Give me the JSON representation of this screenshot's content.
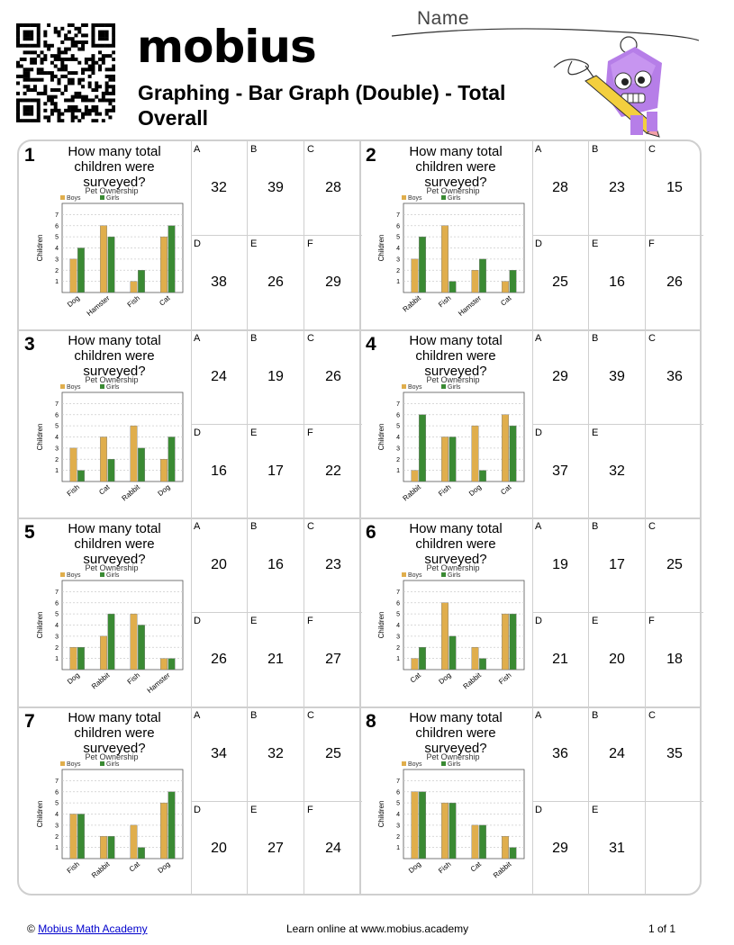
{
  "header": {
    "logo": "mobius",
    "title": "Graphing - Bar Graph (Double) - Total Overall",
    "name_label": "Name"
  },
  "question": "How many total children were surveyed?",
  "chart_common": {
    "title": "Pet Ownership",
    "ylabel": "Children",
    "legend": [
      "Boys",
      "Girls"
    ],
    "yticks": [
      1,
      2,
      3,
      4,
      5,
      6,
      7
    ],
    "colors": {
      "boys": "#e0ae4c",
      "girls": "#3a8a33"
    }
  },
  "problems": [
    {
      "number": "1",
      "answers": [
        {
          "letter": "A",
          "value": "32"
        },
        {
          "letter": "B",
          "value": "39"
        },
        {
          "letter": "C",
          "value": "28"
        },
        {
          "letter": "D",
          "value": "38"
        },
        {
          "letter": "E",
          "value": "26"
        },
        {
          "letter": "F",
          "value": "29"
        }
      ]
    },
    {
      "number": "2",
      "answers": [
        {
          "letter": "A",
          "value": "28"
        },
        {
          "letter": "B",
          "value": "23"
        },
        {
          "letter": "C",
          "value": "15"
        },
        {
          "letter": "D",
          "value": "25"
        },
        {
          "letter": "E",
          "value": "16"
        },
        {
          "letter": "F",
          "value": "26"
        }
      ]
    },
    {
      "number": "3",
      "answers": [
        {
          "letter": "A",
          "value": "24"
        },
        {
          "letter": "B",
          "value": "19"
        },
        {
          "letter": "C",
          "value": "26"
        },
        {
          "letter": "D",
          "value": "16"
        },
        {
          "letter": "E",
          "value": "17"
        },
        {
          "letter": "F",
          "value": "22"
        }
      ]
    },
    {
      "number": "4",
      "answers": [
        {
          "letter": "A",
          "value": "29"
        },
        {
          "letter": "B",
          "value": "39"
        },
        {
          "letter": "C",
          "value": "36"
        },
        {
          "letter": "D",
          "value": "37"
        },
        {
          "letter": "E",
          "value": "32"
        }
      ]
    },
    {
      "number": "5",
      "answers": [
        {
          "letter": "A",
          "value": "20"
        },
        {
          "letter": "B",
          "value": "16"
        },
        {
          "letter": "C",
          "value": "23"
        },
        {
          "letter": "D",
          "value": "26"
        },
        {
          "letter": "E",
          "value": "21"
        },
        {
          "letter": "F",
          "value": "27"
        }
      ]
    },
    {
      "number": "6",
      "answers": [
        {
          "letter": "A",
          "value": "19"
        },
        {
          "letter": "B",
          "value": "17"
        },
        {
          "letter": "C",
          "value": "25"
        },
        {
          "letter": "D",
          "value": "21"
        },
        {
          "letter": "E",
          "value": "20"
        },
        {
          "letter": "F",
          "value": "18"
        }
      ]
    },
    {
      "number": "7",
      "answers": [
        {
          "letter": "A",
          "value": "34"
        },
        {
          "letter": "B",
          "value": "32"
        },
        {
          "letter": "C",
          "value": "25"
        },
        {
          "letter": "D",
          "value": "20"
        },
        {
          "letter": "E",
          "value": "27"
        },
        {
          "letter": "F",
          "value": "24"
        }
      ]
    },
    {
      "number": "8",
      "answers": [
        {
          "letter": "A",
          "value": "36"
        },
        {
          "letter": "B",
          "value": "24"
        },
        {
          "letter": "C",
          "value": "35"
        },
        {
          "letter": "D",
          "value": "29"
        },
        {
          "letter": "E",
          "value": "31"
        }
      ]
    }
  ],
  "chart_data": [
    {
      "type": "bar",
      "title": "Pet Ownership",
      "ylabel": "Children",
      "ylim": [
        0,
        8
      ],
      "categories": [
        "Dog",
        "Hamster",
        "Fish",
        "Cat"
      ],
      "series": [
        {
          "name": "Boys",
          "values": [
            3,
            6,
            1,
            5
          ]
        },
        {
          "name": "Girls",
          "values": [
            4,
            5,
            2,
            6
          ]
        }
      ]
    },
    {
      "type": "bar",
      "title": "Pet Ownership",
      "ylabel": "Children",
      "ylim": [
        0,
        8
      ],
      "categories": [
        "Rabbit",
        "Fish",
        "Hamster",
        "Cat"
      ],
      "series": [
        {
          "name": "Boys",
          "values": [
            3,
            6,
            2,
            1
          ]
        },
        {
          "name": "Girls",
          "values": [
            5,
            1,
            3,
            2
          ]
        }
      ]
    },
    {
      "type": "bar",
      "title": "Pet Ownership",
      "ylabel": "Children",
      "ylim": [
        0,
        8
      ],
      "categories": [
        "Fish",
        "Cat",
        "Rabbit",
        "Dog"
      ],
      "series": [
        {
          "name": "Boys",
          "values": [
            3,
            4,
            5,
            2
          ]
        },
        {
          "name": "Girls",
          "values": [
            1,
            2,
            3,
            4
          ]
        }
      ]
    },
    {
      "type": "bar",
      "title": "Pet Ownership",
      "ylabel": "Children",
      "ylim": [
        0,
        8
      ],
      "categories": [
        "Rabbit",
        "Fish",
        "Dog",
        "Cat"
      ],
      "series": [
        {
          "name": "Boys",
          "values": [
            1,
            4,
            5,
            6
          ]
        },
        {
          "name": "Girls",
          "values": [
            6,
            4,
            1,
            5
          ]
        }
      ]
    },
    {
      "type": "bar",
      "title": "Pet Ownership",
      "ylabel": "Children",
      "ylim": [
        0,
        8
      ],
      "categories": [
        "Dog",
        "Rabbit",
        "Fish",
        "Hamster"
      ],
      "series": [
        {
          "name": "Boys",
          "values": [
            2,
            3,
            5,
            1
          ]
        },
        {
          "name": "Girls",
          "values": [
            2,
            5,
            4,
            1
          ]
        }
      ]
    },
    {
      "type": "bar",
      "title": "Pet Ownership",
      "ylabel": "Children",
      "ylim": [
        0,
        8
      ],
      "categories": [
        "Cat",
        "Dog",
        "Rabbit",
        "Fish"
      ],
      "series": [
        {
          "name": "Boys",
          "values": [
            1,
            6,
            2,
            5
          ]
        },
        {
          "name": "Girls",
          "values": [
            2,
            3,
            1,
            5
          ]
        }
      ]
    },
    {
      "type": "bar",
      "title": "Pet Ownership",
      "ylabel": "Children",
      "ylim": [
        0,
        8
      ],
      "categories": [
        "Fish",
        "Rabbit",
        "Cat",
        "Dog"
      ],
      "series": [
        {
          "name": "Boys",
          "values": [
            4,
            2,
            3,
            5
          ]
        },
        {
          "name": "Girls",
          "values": [
            4,
            2,
            1,
            6
          ]
        }
      ]
    },
    {
      "type": "bar",
      "title": "Pet Ownership",
      "ylabel": "Children",
      "ylim": [
        0,
        8
      ],
      "categories": [
        "Dog",
        "Fish",
        "Cat",
        "Rabbit"
      ],
      "series": [
        {
          "name": "Boys",
          "values": [
            6,
            5,
            3,
            2
          ]
        },
        {
          "name": "Girls",
          "values": [
            6,
            5,
            3,
            1
          ]
        }
      ]
    }
  ],
  "footer": {
    "copyright": "©",
    "link_text": "Mobius Math Academy",
    "learn": "Learn online at www.mobius.academy",
    "page": "1 of 1"
  }
}
